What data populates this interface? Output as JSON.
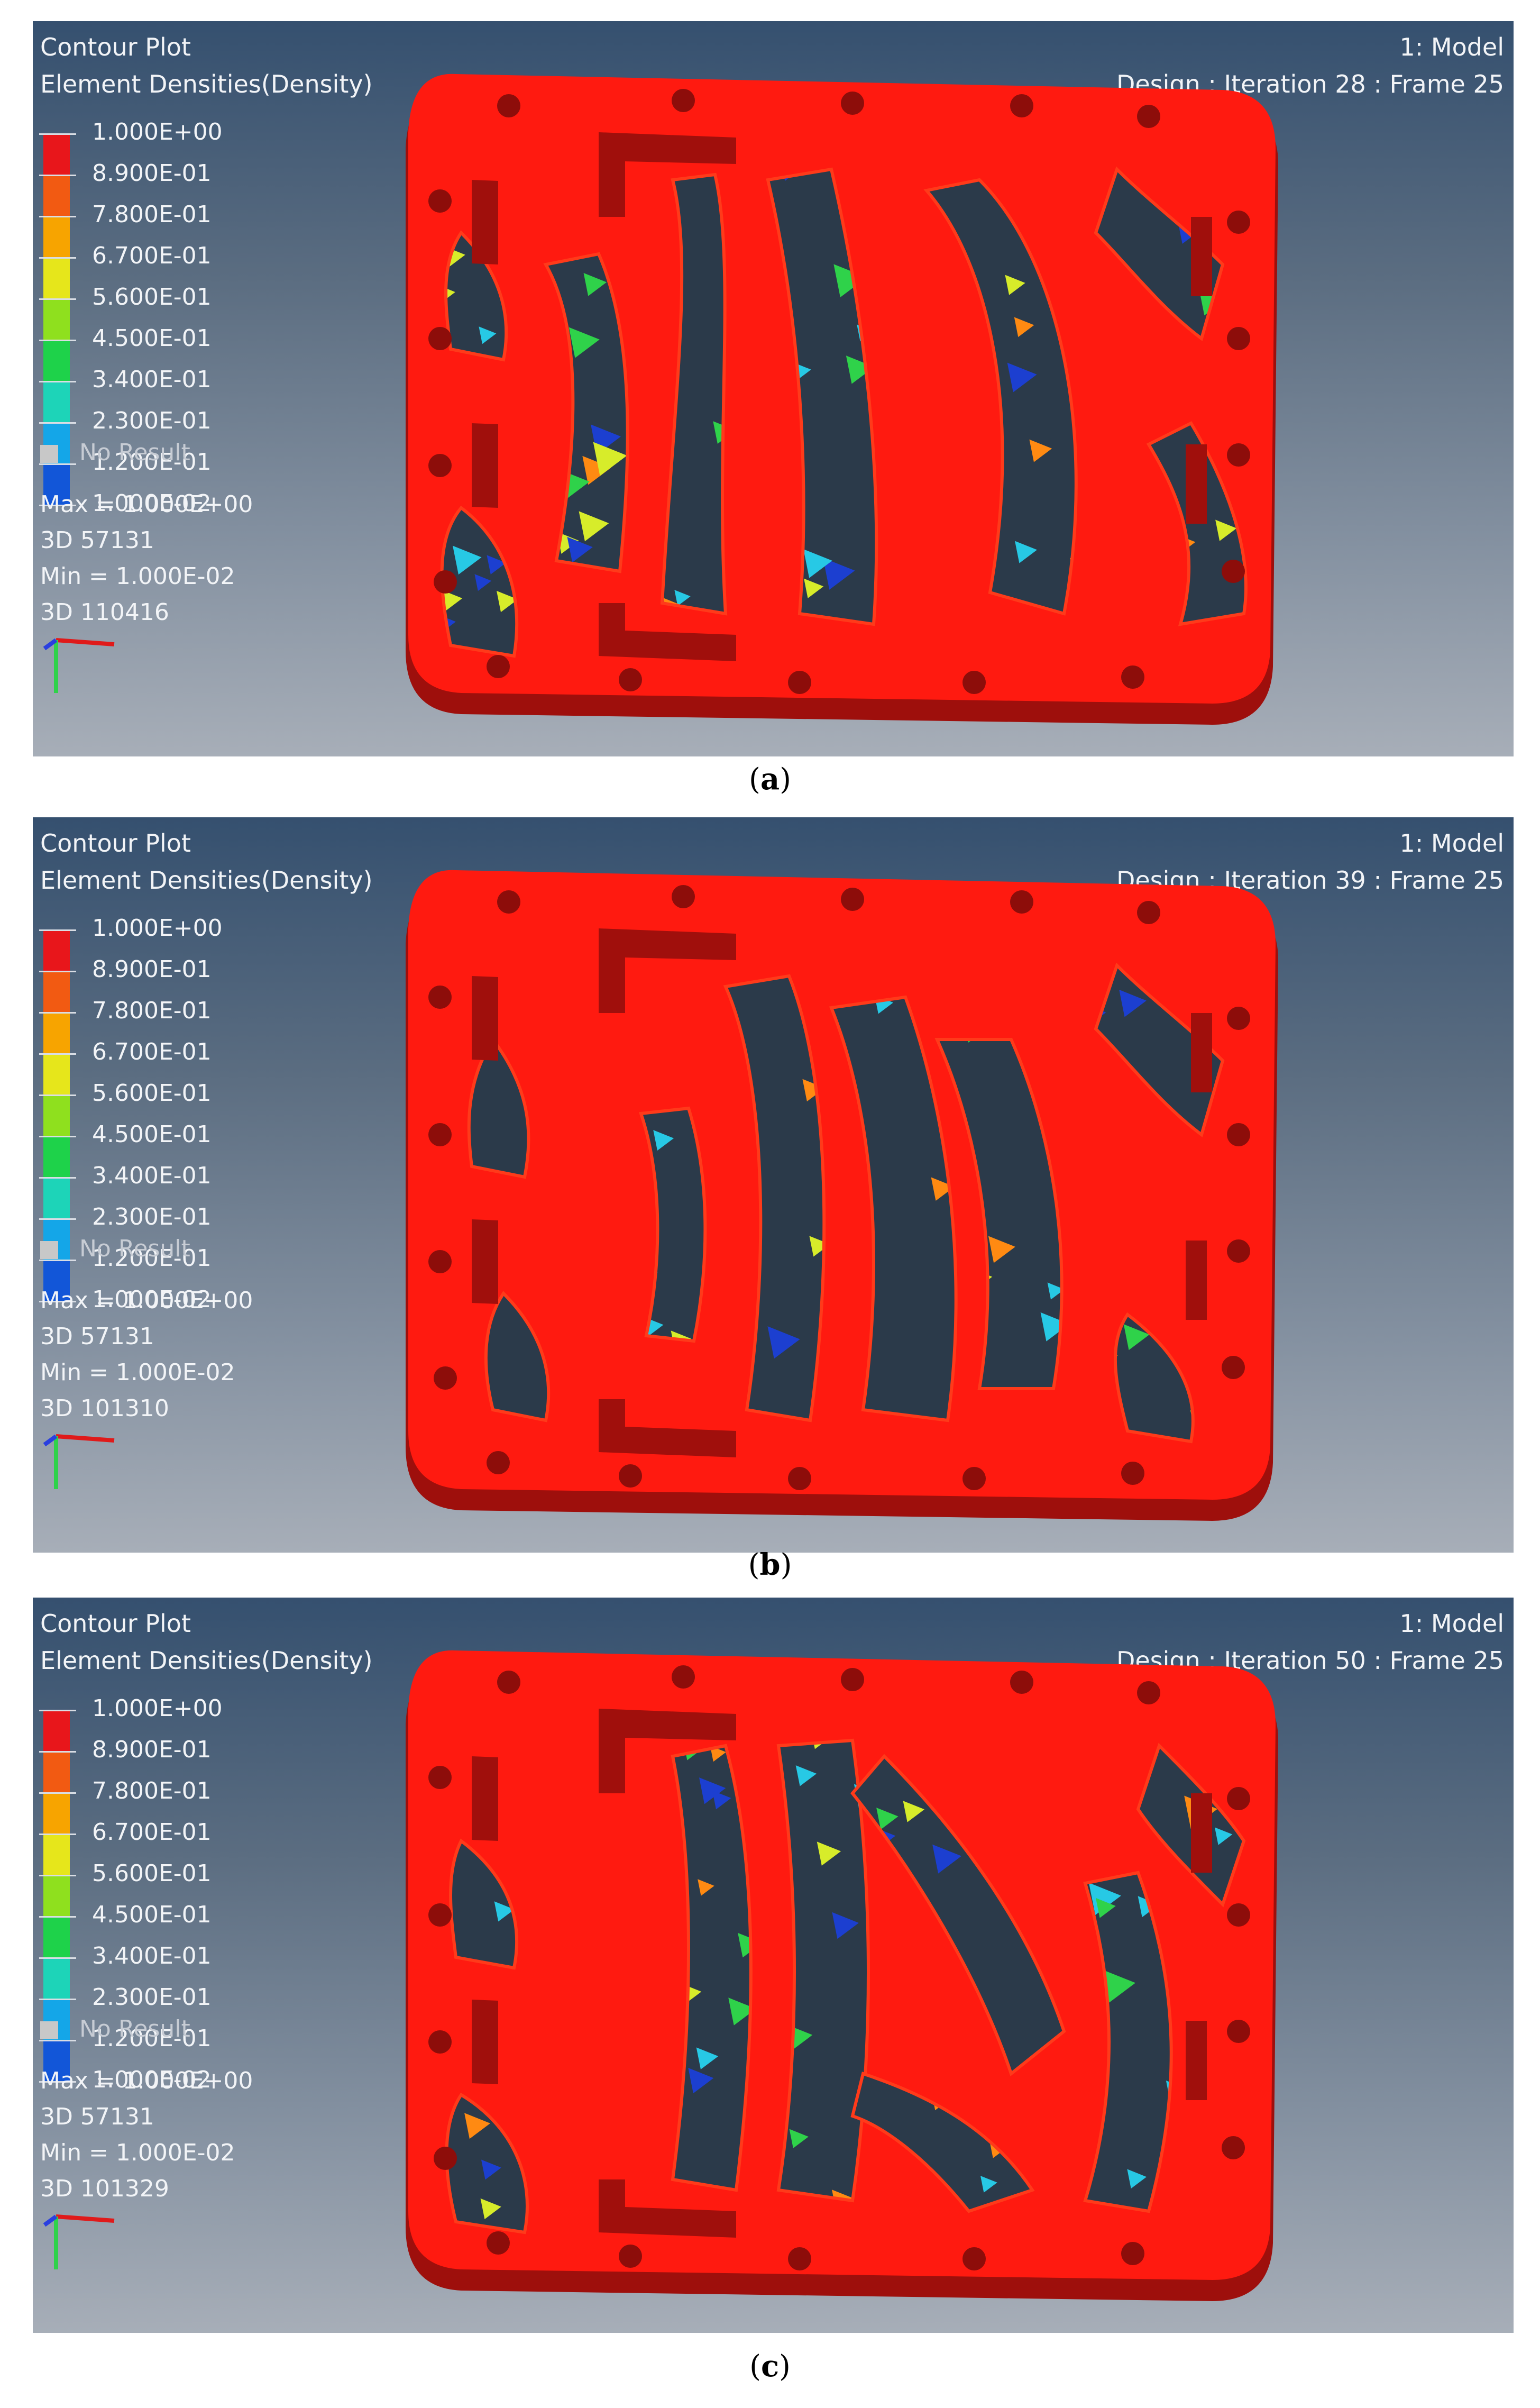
{
  "panels": [
    {
      "title_line1": "Contour Plot",
      "title_line2": "Element Densities(Density)",
      "model_label": "1: Model",
      "design_label": "Design : Iteration 28 : Frame 25",
      "legend": [
        "1.000E+00",
        "8.900E-01",
        "7.800E-01",
        "6.700E-01",
        "5.600E-01",
        "4.500E-01",
        "3.400E-01",
        "2.300E-01",
        "1.200E-01",
        "1.000E-02"
      ],
      "no_result": "No Result",
      "max_line": "Max = 1.000E+00",
      "max_elem": "3D 57131",
      "min_line": "Min = 1.000E-02",
      "min_elem": "3D 110416",
      "caption": "a"
    },
    {
      "title_line1": "Contour Plot",
      "title_line2": "Element Densities(Density)",
      "model_label": "1: Model",
      "design_label": "Design : Iteration 39 : Frame 25",
      "legend": [
        "1.000E+00",
        "8.900E-01",
        "7.800E-01",
        "6.700E-01",
        "5.600E-01",
        "4.500E-01",
        "3.400E-01",
        "2.300E-01",
        "1.200E-01",
        "1.000E-02"
      ],
      "no_result": "No Result",
      "max_line": "Max = 1.000E+00",
      "max_elem": "3D 57131",
      "min_line": "Min = 1.000E-02",
      "min_elem": "3D 101310",
      "caption": "b"
    },
    {
      "title_line1": "Contour Plot",
      "title_line2": "Element Densities(Density)",
      "model_label": "1: Model",
      "design_label": "Design : Iteration 50 : Frame 25",
      "legend": [
        "1.000E+00",
        "8.900E-01",
        "7.800E-01",
        "6.700E-01",
        "5.600E-01",
        "4.500E-01",
        "3.400E-01",
        "2.300E-01",
        "1.200E-01",
        "1.000E-02"
      ],
      "no_result": "No Result",
      "max_line": "Max = 1.000E+00",
      "max_elem": "3D 57131",
      "min_line": "Min = 1.000E-02",
      "min_elem": "3D 101329",
      "caption": "c"
    }
  ],
  "colors": {
    "legend_bands": [
      "#e8161b",
      "#f25a12",
      "#f7a400",
      "#e6e61b",
      "#8fe01e",
      "#1ed24a",
      "#1dd4b8",
      "#14a6e8",
      "#1256d8",
      "#0a0a9a"
    ],
    "plate_red": "#ff1a10",
    "plate_edge": "#9e0f0c",
    "lattice_yellow": "#d7ec2a",
    "lattice_cyan": "#27c9e5",
    "lattice_blue": "#1c3fd0",
    "lattice_green": "#2fd24a",
    "lattice_orange": "#ff8a12"
  },
  "icons": [
    "coordinate-triad-icon"
  ]
}
